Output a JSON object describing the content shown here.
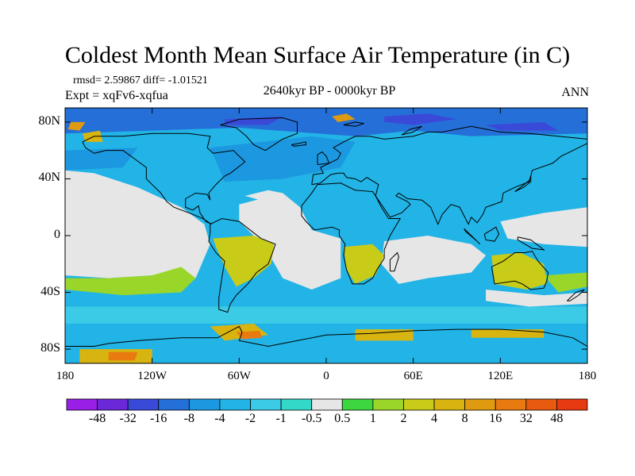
{
  "title": "Coldest Month Mean Surface Air Temperature (in C)",
  "stats": "rmsd= 2.59867 diff= -1.01521",
  "experiment": "Expt = xqFv6-xqfua",
  "period": "2640kyr BP - 0000kyr BP",
  "season": "ANN",
  "lat_ticks": [
    "80N",
    "40N",
    "0",
    "40S",
    "80S"
  ],
  "lon_ticks": [
    "180",
    "120W",
    "60W",
    "0",
    "60E",
    "120E",
    "180"
  ],
  "colorbar": {
    "labels": [
      "-48",
      "-32",
      "-16",
      "-8",
      "-4",
      "-2",
      "-1",
      "-0.5",
      "0.5",
      "1",
      "2",
      "4",
      "8",
      "16",
      "32",
      "48"
    ],
    "colors": [
      "#9a1fe6",
      "#6a28d8",
      "#3a4ad8",
      "#2570d8",
      "#1c98e0",
      "#22b4e6",
      "#3ccbe6",
      "#34d8c8",
      "#e6e6e6",
      "#3ed63e",
      "#9ad62a",
      "#c8cc18",
      "#d8b410",
      "#e09a10",
      "#e87a10",
      "#e85a10",
      "#e83a10"
    ]
  },
  "chart_data": {
    "type": "heatmap",
    "projection": "cylindrical-equidistant",
    "variable": "Coldest month mean surface air temperature difference",
    "units": "C",
    "x_range_deg": [
      -180,
      180
    ],
    "y_range_deg": [
      -90,
      90
    ],
    "bounds": [
      -48,
      -32,
      -16,
      -8,
      -4,
      -2,
      -1,
      -0.5,
      0.5,
      1,
      2,
      4,
      8,
      16,
      32,
      48
    ],
    "regions": [
      {
        "name": "ocean-background",
        "value": -3
      },
      {
        "name": "southern-ocean-belt",
        "value": -2
      },
      {
        "name": "north-atlantic-cool",
        "value": -6
      },
      {
        "name": "arctic-cold",
        "value": -10
      },
      {
        "name": "siberia-very-cold",
        "value": -18
      },
      {
        "name": "barents-warm-spot",
        "value": 8
      },
      {
        "name": "greenland-warm-spot",
        "value": 6
      },
      {
        "name": "tropical-pacific-neutral",
        "value": 0
      },
      {
        "name": "tropical-atlantic-neutral",
        "value": 0
      },
      {
        "name": "indian-ocean-neutral",
        "value": 0
      },
      {
        "name": "south-pacific-warm",
        "value": 1.5
      },
      {
        "name": "brazil-warm",
        "value": 3
      },
      {
        "name": "southern-africa-warm",
        "value": 2
      },
      {
        "name": "australia-warm",
        "value": 2
      },
      {
        "name": "antarctic-peninsula-warm",
        "value": 6
      },
      {
        "name": "weddell-hotspot",
        "value": 16
      },
      {
        "name": "ross-sea-warm",
        "value": 4
      },
      {
        "name": "antarctic-interior",
        "value": -3
      }
    ]
  }
}
